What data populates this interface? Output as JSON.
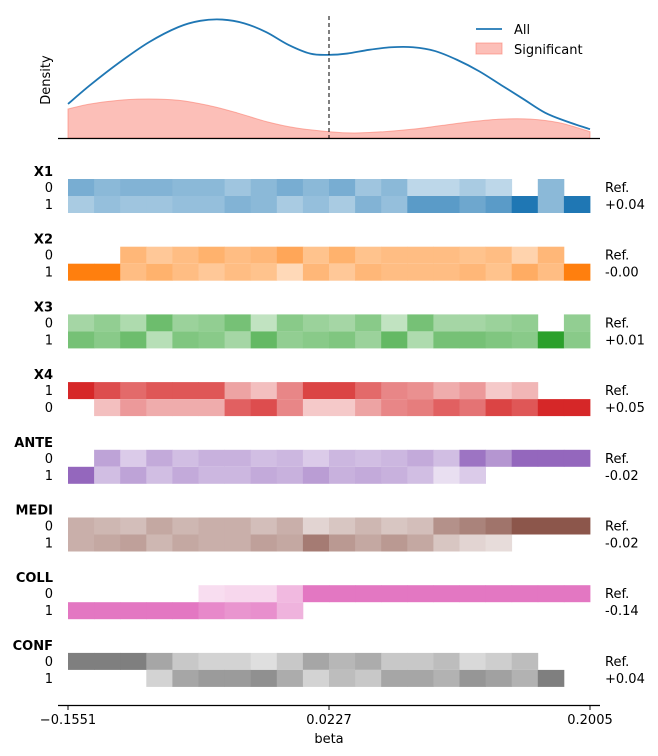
{
  "chart_data": [
    {
      "type": "area",
      "ylabel": "Density",
      "xlim": [
        -0.1551,
        0.2005
      ],
      "ylim": [
        0,
        1
      ],
      "vline_x": 0.0227,
      "legend_position": "top-right",
      "series": [
        {
          "name": "All",
          "color": "#1f77b4",
          "style": "line",
          "x": [
            -0.1551,
            -0.14,
            -0.12,
            -0.1,
            -0.08,
            -0.065,
            -0.05,
            -0.035,
            -0.02,
            -0.005,
            0.01,
            0.0227,
            0.035,
            0.05,
            0.065,
            0.08,
            0.095,
            0.11,
            0.125,
            0.14,
            0.155,
            0.17,
            0.185,
            0.2005
          ],
          "y": [
            0.27,
            0.42,
            0.6,
            0.76,
            0.88,
            0.93,
            0.94,
            0.91,
            0.84,
            0.74,
            0.67,
            0.66,
            0.67,
            0.7,
            0.72,
            0.72,
            0.69,
            0.62,
            0.53,
            0.42,
            0.31,
            0.2,
            0.13,
            0.07
          ]
        },
        {
          "name": "Significant",
          "color": "#fa8072",
          "style": "fill",
          "x": [
            -0.1551,
            -0.14,
            -0.12,
            -0.1,
            -0.08,
            -0.06,
            -0.04,
            -0.02,
            0.0,
            0.0227,
            0.04,
            0.06,
            0.08,
            0.1,
            0.12,
            0.14,
            0.16,
            0.18,
            0.2005
          ],
          "y": [
            0.23,
            0.27,
            0.3,
            0.31,
            0.3,
            0.26,
            0.2,
            0.13,
            0.08,
            0.05,
            0.04,
            0.05,
            0.07,
            0.1,
            0.13,
            0.15,
            0.15,
            0.12,
            0.05
          ]
        }
      ]
    },
    {
      "type": "heatmap",
      "xlabel": "beta",
      "xticks": [
        "-0.1551",
        "0.0227",
        "0.2005"
      ],
      "n_bins": 20,
      "groups": [
        {
          "name": "X1",
          "color": "#1f77b4",
          "levels": [
            "0",
            "1"
          ],
          "annotation": [
            "Ref.",
            "+0.04"
          ],
          "rows": [
            [
              0.55,
              0.45,
              0.5,
              0.5,
              0.45,
              0.45,
              0.35,
              0.45,
              0.55,
              0.45,
              0.55,
              0.35,
              0.45,
              0.2,
              0.2,
              0.3,
              0.2,
              null,
              0.45,
              null
            ],
            [
              0.3,
              0.4,
              0.35,
              0.35,
              0.4,
              0.4,
              0.5,
              0.45,
              0.3,
              0.4,
              0.3,
              0.5,
              0.4,
              0.7,
              0.7,
              0.6,
              0.7,
              1.0,
              0.45,
              1.0
            ]
          ]
        },
        {
          "name": "X2",
          "color": "#ff7f0e",
          "levels": [
            "0",
            "1"
          ],
          "annotation": [
            "Ref.",
            "-0.00"
          ],
          "rows": [
            [
              null,
              null,
              0.5,
              0.35,
              0.45,
              0.55,
              0.45,
              0.5,
              0.65,
              0.4,
              0.55,
              0.4,
              0.45,
              0.45,
              0.45,
              0.4,
              0.45,
              0.25,
              0.5,
              null
            ],
            [
              1.0,
              1.0,
              0.45,
              0.55,
              0.45,
              0.35,
              0.45,
              0.4,
              0.2,
              0.5,
              0.35,
              0.5,
              0.45,
              0.45,
              0.45,
              0.5,
              0.4,
              0.6,
              0.45,
              1.0
            ]
          ]
        },
        {
          "name": "X3",
          "color": "#2ca02c",
          "levels": [
            "0",
            "1"
          ],
          "annotation": [
            "Ref.",
            "+0.01"
          ],
          "rows": [
            [
              0.35,
              0.45,
              0.3,
              0.65,
              0.4,
              0.45,
              0.6,
              0.2,
              0.5,
              0.4,
              0.35,
              0.5,
              0.2,
              0.6,
              0.35,
              0.35,
              0.4,
              0.45,
              null,
              0.45
            ],
            [
              0.6,
              0.5,
              0.65,
              0.25,
              0.55,
              0.5,
              0.35,
              0.7,
              0.45,
              0.5,
              0.55,
              0.4,
              0.7,
              0.3,
              0.6,
              0.6,
              0.55,
              0.5,
              1.0,
              0.5
            ]
          ]
        },
        {
          "name": "X4",
          "color": "#d62728",
          "levels": [
            "1",
            "0"
          ],
          "annotation": [
            "Ref.",
            "+0.05"
          ],
          "rows": [
            [
              1.0,
              0.8,
              0.65,
              0.75,
              0.75,
              0.75,
              0.35,
              0.2,
              0.5,
              0.85,
              0.85,
              0.65,
              0.5,
              0.45,
              0.3,
              0.4,
              0.15,
              0.25,
              null,
              null
            ],
            [
              null,
              0.2,
              0.4,
              0.3,
              0.3,
              0.3,
              0.7,
              0.8,
              0.5,
              0.15,
              0.15,
              0.35,
              0.5,
              0.55,
              0.7,
              0.6,
              0.85,
              0.75,
              1.0,
              1.0
            ]
          ]
        },
        {
          "name": "ANTE",
          "color": "#9467bd",
          "levels": [
            "0",
            "1"
          ],
          "annotation": [
            "Ref.",
            "-0.02"
          ],
          "rows": [
            [
              null,
              0.55,
              0.25,
              0.5,
              0.35,
              0.45,
              0.45,
              0.35,
              0.4,
              0.25,
              0.4,
              0.35,
              0.4,
              0.5,
              0.35,
              0.9,
              0.65,
              1.0,
              1.0,
              1.0
            ],
            [
              1.0,
              0.35,
              0.55,
              0.35,
              0.5,
              0.4,
              0.4,
              0.5,
              0.45,
              0.6,
              0.45,
              0.5,
              0.45,
              0.35,
              0.1,
              0.25,
              null,
              null,
              null,
              null
            ]
          ]
        },
        {
          "name": "MEDI",
          "color": "#8c564b",
          "levels": [
            "0",
            "1"
          ],
          "annotation": [
            "Ref.",
            "-0.02"
          ],
          "rows": [
            [
              0.4,
              0.35,
              0.3,
              0.45,
              0.35,
              0.4,
              0.4,
              0.3,
              0.4,
              0.15,
              0.25,
              0.35,
              0.25,
              0.3,
              0.6,
              0.7,
              0.8,
              1.0,
              1.0,
              1.0
            ],
            [
              0.4,
              0.45,
              0.5,
              0.35,
              0.45,
              0.4,
              0.4,
              0.5,
              0.45,
              0.75,
              0.55,
              0.45,
              0.55,
              0.45,
              0.25,
              0.15,
              0.1,
              null,
              null,
              null
            ]
          ]
        },
        {
          "name": "COLL",
          "color": "#e377c2",
          "levels": [
            "0",
            "1"
          ],
          "annotation": [
            "Ref.",
            "-0.14"
          ],
          "rows": [
            [
              null,
              null,
              null,
              null,
              null,
              0.15,
              0.2,
              0.2,
              0.45,
              1.0,
              1.0,
              1.0,
              1.0,
              1.0,
              1.0,
              1.0,
              1.0,
              1.0,
              1.0,
              1.0
            ],
            [
              1.0,
              1.0,
              1.0,
              1.0,
              1.0,
              0.85,
              0.75,
              0.8,
              0.5,
              null,
              null,
              null,
              null,
              null,
              null,
              null,
              null,
              null,
              null,
              null
            ]
          ]
        },
        {
          "name": "CONF",
          "color": "#7f7f7f",
          "levels": [
            "0",
            "1"
          ],
          "annotation": [
            "Ref.",
            "+0.04"
          ],
          "rows": [
            [
              1.0,
              1.0,
              1.0,
              0.65,
              0.35,
              0.25,
              0.25,
              0.15,
              0.35,
              0.65,
              0.5,
              0.6,
              0.35,
              0.35,
              0.45,
              0.2,
              0.3,
              0.45,
              null,
              null
            ],
            [
              null,
              null,
              null,
              0.25,
              0.65,
              0.75,
              0.75,
              0.85,
              0.6,
              0.25,
              0.45,
              0.35,
              0.65,
              0.65,
              0.55,
              0.8,
              0.7,
              0.55,
              1.0,
              null
            ]
          ]
        }
      ]
    }
  ]
}
